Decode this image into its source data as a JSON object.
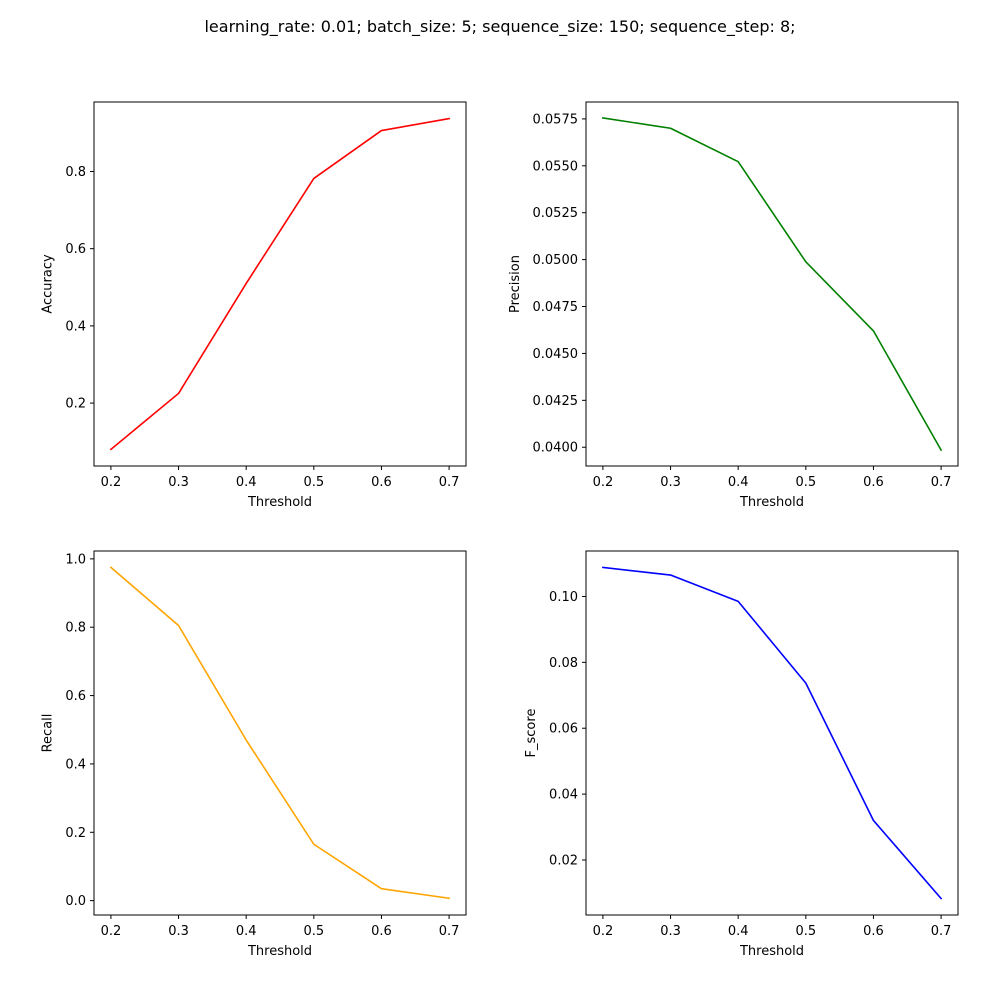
{
  "figure": {
    "suptitle": "learning_rate: 0.01; batch_size: 5; sequence_size: 150; sequence_step: 8;"
  },
  "chart_data": [
    {
      "type": "line",
      "xlabel": "Threshold",
      "ylabel": "Accuracy",
      "color": "#ff0000",
      "x": [
        0.2,
        0.3,
        0.4,
        0.5,
        0.6,
        0.7
      ],
      "y": [
        0.08,
        0.225,
        0.51,
        0.782,
        0.906,
        0.937
      ],
      "xticks": [
        0.2,
        0.3,
        0.4,
        0.5,
        0.6,
        0.7
      ],
      "xtick_labels": [
        "0.2",
        "0.3",
        "0.4",
        "0.5",
        "0.6",
        "0.7"
      ],
      "yticks": [
        0.2,
        0.4,
        0.6,
        0.8
      ],
      "ytick_labels": [
        "0.2",
        "0.4",
        "0.6",
        "0.8"
      ],
      "xlim": [
        0.175,
        0.725
      ],
      "ylim": [
        0.037,
        0.98
      ],
      "grid": false
    },
    {
      "type": "line",
      "xlabel": "Threshold",
      "ylabel": "Precision",
      "color": "#008000",
      "x": [
        0.2,
        0.3,
        0.4,
        0.5,
        0.6,
        0.7
      ],
      "y": [
        0.05755,
        0.057,
        0.05522,
        0.04988,
        0.0462,
        0.03985
      ],
      "xticks": [
        0.2,
        0.3,
        0.4,
        0.5,
        0.6,
        0.7
      ],
      "xtick_labels": [
        "0.2",
        "0.3",
        "0.4",
        "0.5",
        "0.6",
        "0.7"
      ],
      "yticks": [
        0.04,
        0.0425,
        0.045,
        0.0475,
        0.05,
        0.0525,
        0.055,
        0.0575
      ],
      "ytick_labels": [
        "0.0400",
        "0.0425",
        "0.0450",
        "0.0475",
        "0.0500",
        "0.0525",
        "0.0550",
        "0.0575"
      ],
      "xlim": [
        0.175,
        0.725
      ],
      "ylim": [
        0.039,
        0.0584
      ],
      "grid": false
    },
    {
      "type": "line",
      "xlabel": "Threshold",
      "ylabel": "Recall",
      "color": "#ffa500",
      "x": [
        0.2,
        0.3,
        0.4,
        0.5,
        0.6,
        0.7
      ],
      "y": [
        0.975,
        0.805,
        0.47,
        0.165,
        0.035,
        0.007
      ],
      "xticks": [
        0.2,
        0.3,
        0.4,
        0.5,
        0.6,
        0.7
      ],
      "xtick_labels": [
        "0.2",
        "0.3",
        "0.4",
        "0.5",
        "0.6",
        "0.7"
      ],
      "yticks": [
        0.0,
        0.2,
        0.4,
        0.6,
        0.8,
        1.0
      ],
      "ytick_labels": [
        "0.0",
        "0.2",
        "0.4",
        "0.6",
        "0.8",
        "1.0"
      ],
      "xlim": [
        0.175,
        0.725
      ],
      "ylim": [
        -0.042,
        1.023
      ],
      "grid": false
    },
    {
      "type": "line",
      "xlabel": "Threshold",
      "ylabel": "F_score",
      "color": "#0000ff",
      "x": [
        0.2,
        0.3,
        0.4,
        0.5,
        0.6,
        0.7
      ],
      "y": [
        0.1088,
        0.1065,
        0.0985,
        0.0737,
        0.032,
        0.0083
      ],
      "xticks": [
        0.2,
        0.3,
        0.4,
        0.5,
        0.6,
        0.7
      ],
      "xtick_labels": [
        "0.2",
        "0.3",
        "0.4",
        "0.5",
        "0.6",
        "0.7"
      ],
      "yticks": [
        0.02,
        0.04,
        0.06,
        0.08,
        0.1
      ],
      "ytick_labels": [
        "0.02",
        "0.04",
        "0.06",
        "0.08",
        "0.10"
      ],
      "xlim": [
        0.175,
        0.725
      ],
      "ylim": [
        0.0033,
        0.1138
      ],
      "grid": false
    }
  ]
}
